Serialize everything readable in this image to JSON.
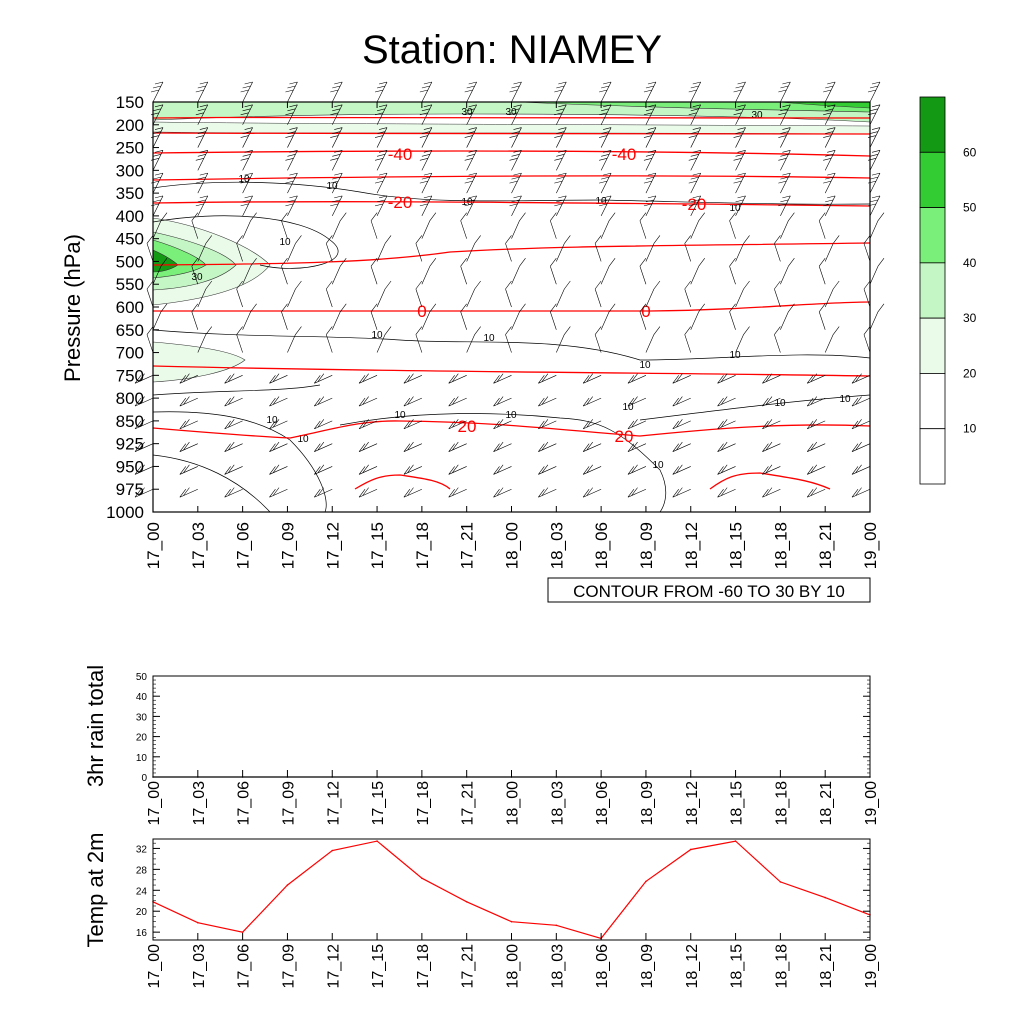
{
  "title": "Station: NIAMEY",
  "time_labels": [
    "17_00",
    "17_03",
    "17_06",
    "17_09",
    "17_12",
    "17_15",
    "17_18",
    "17_21",
    "18_00",
    "18_03",
    "18_06",
    "18_09",
    "18_12",
    "18_15",
    "18_18",
    "18_21",
    "19_00"
  ],
  "colors": {
    "temperature_contour": "#ff0000",
    "rh_contour": "#000000",
    "shade_levels": [
      "#ffffff",
      "#ffffff",
      "#eafbea",
      "#c4f5c4",
      "#7af07a",
      "#33cc33",
      "#149914"
    ]
  },
  "chart_data": [
    {
      "type": "heatmap",
      "title": "Station: NIAMEY",
      "ylabel": "Pressure (hPa)",
      "xlabel": "",
      "y_ticks": [
        150,
        200,
        250,
        300,
        350,
        400,
        450,
        500,
        550,
        600,
        650,
        700,
        750,
        800,
        850,
        925,
        950,
        975,
        1000
      ],
      "y_order": "top-to-bottom",
      "x_ticks": [
        "17_00",
        "17_03",
        "17_06",
        "17_09",
        "17_12",
        "17_15",
        "17_18",
        "17_21",
        "18_00",
        "18_03",
        "18_06",
        "18_09",
        "18_12",
        "18_15",
        "18_18",
        "18_21",
        "19_00"
      ],
      "contour_info": "CONTOUR FROM -60 TO 30 BY 10",
      "colorbar": {
        "labels": [
          "10",
          "20",
          "30",
          "40",
          "50",
          "60"
        ]
      },
      "temperature_contours": [
        {
          "level": -40,
          "label": "-40"
        },
        {
          "level": -20,
          "label": "-20"
        },
        {
          "level": 0,
          "label": "0"
        },
        {
          "level": 20,
          "label": "20"
        }
      ],
      "rh_contour_labels": [
        "10",
        "30"
      ],
      "wind_barbs": true
    },
    {
      "type": "line",
      "ylabel": "3hr rain total",
      "ylim": [
        0,
        50
      ],
      "y_ticks": [
        0,
        10,
        20,
        30,
        40,
        50
      ],
      "x": [
        "17_00",
        "17_03",
        "17_06",
        "17_09",
        "17_12",
        "17_15",
        "17_18",
        "17_21",
        "18_00",
        "18_03",
        "18_06",
        "18_09",
        "18_12",
        "18_15",
        "18_18",
        "18_21",
        "19_00"
      ],
      "values": [
        0,
        0,
        0,
        0,
        0,
        0,
        0,
        0,
        0,
        0,
        0,
        0,
        0,
        0,
        0,
        0,
        0
      ]
    },
    {
      "type": "line",
      "ylabel": "Temp at 2m",
      "ylim": [
        14.5,
        33.8
      ],
      "y_ticks": [
        16,
        20,
        24,
        28,
        32
      ],
      "x": [
        "17_00",
        "17_03",
        "17_06",
        "17_09",
        "17_12",
        "17_15",
        "17_18",
        "17_21",
        "18_00",
        "18_03",
        "18_06",
        "18_09",
        "18_12",
        "18_15",
        "18_18",
        "18_21",
        "19_00"
      ],
      "values": [
        21.8,
        17.8,
        16.0,
        25.0,
        31.6,
        33.4,
        26.3,
        21.8,
        18.0,
        17.3,
        14.8,
        25.7,
        31.8,
        33.4,
        25.6,
        22.6,
        19.3
      ],
      "color": "#ff0000"
    }
  ]
}
